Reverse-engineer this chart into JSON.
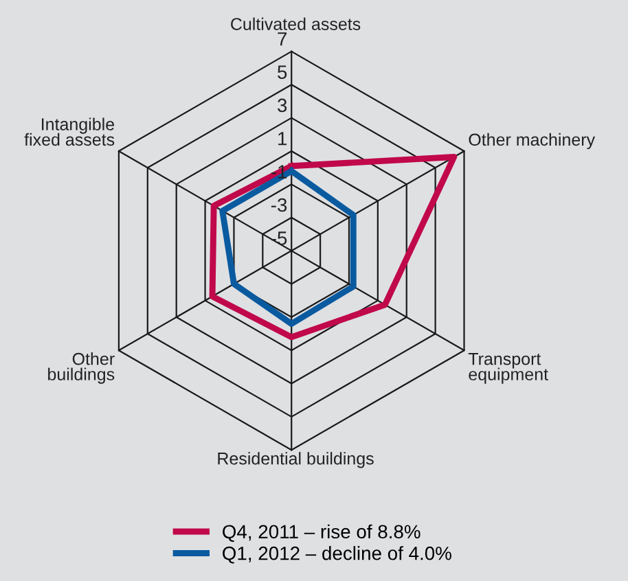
{
  "chart_data": {
    "type": "radar",
    "categories": [
      "Cultivated assets",
      "Other machinery",
      "Transport\nequipment",
      "Residential buildings",
      "Other\nbuildings",
      "Intangible\nfixed assets"
    ],
    "ylim": [
      -5,
      7
    ],
    "yticks": [
      -5,
      -3,
      -1,
      1,
      3,
      5,
      7
    ],
    "legend": "bottom",
    "grid": true,
    "series": [
      {
        "name": "Q4, 2011 – rise of 8.8%",
        "color": "#c0084a",
        "values": [
          0.1,
          6.3,
          1.5,
          0.2,
          0.5,
          0.4
        ]
      },
      {
        "name": "Q1, 2012 – decline of 4.0%",
        "color": "#0a5aa0",
        "values": [
          -0.2,
          -0.7,
          -0.7,
          -0.6,
          -1.0,
          -0.2
        ]
      }
    ]
  }
}
